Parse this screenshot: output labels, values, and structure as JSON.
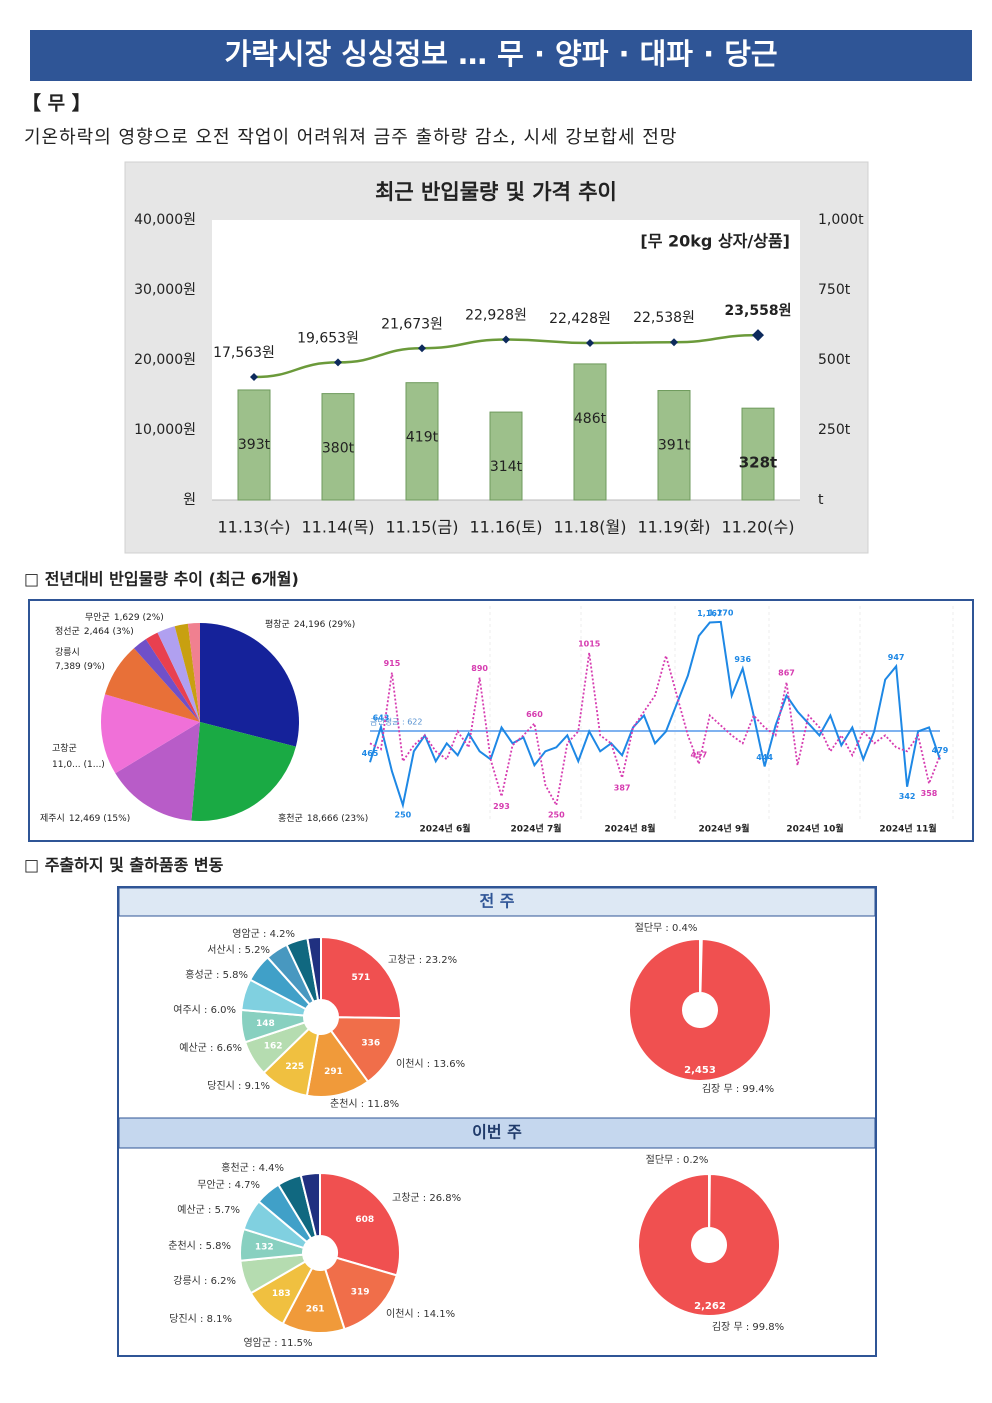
{
  "header": {
    "title": "가락시장 싱싱정보 … 무 · 양파 · 대파 · 당근"
  },
  "section": {
    "label": "【 무 】",
    "summary": "기온하락의 영향으로 오전 작업이 어려워져 금주 출하량 감소, 시세 강보합세 전망"
  },
  "sections": [
    "□  전년대비 반입물량 추이 (최근 6개월)",
    "□  주출하지 및 출하품종 변동"
  ],
  "weeks": [
    "전 주",
    "이번 주"
  ],
  "chart_data": [
    {
      "type": "bar_line",
      "title": "최근 반입물량 및 가격 추이",
      "annotation": "[무 20kg 상자/상품]",
      "categories": [
        "11.13(수)",
        "11.14(목)",
        "11.15(금)",
        "11.16(토)",
        "11.18(월)",
        "11.19(화)",
        "11.20(수)"
      ],
      "series": [
        {
          "type": "bar",
          "axis": "y2",
          "color": "#9dc08b",
          "values": [
            393,
            380,
            419,
            314,
            486,
            391,
            328
          ],
          "value_labels": [
            "393t",
            "380t",
            "419t",
            "314t",
            "486t",
            "391t",
            "328t"
          ]
        },
        {
          "type": "line",
          "color": "#6b9a3a",
          "marker_color": "#0d2a5c",
          "values": [
            17563,
            19653,
            21673,
            22928,
            22428,
            22538,
            23558
          ],
          "value_labels": [
            "17,563원",
            "19,653원",
            "21,673원",
            "22,928원",
            "22,428원",
            "22,538원",
            "23,558원"
          ]
        }
      ],
      "ylim": [
        0,
        40000
      ],
      "yticks": [
        {
          "value": 0,
          "label": "원"
        },
        {
          "value": 10000,
          "label": "10,000원"
        },
        {
          "value": 20000,
          "label": "20,000원"
        },
        {
          "value": 30000,
          "label": "30,000원"
        },
        {
          "value": 40000,
          "label": "40,000원"
        }
      ],
      "y2lim": [
        0,
        1000
      ],
      "y2ticks": [
        {
          "value": 0,
          "label": "t"
        },
        {
          "value": 250,
          "label": "250t"
        },
        {
          "value": 500,
          "label": "500t"
        },
        {
          "value": 750,
          "label": "750t"
        },
        {
          "value": 1000,
          "label": "1,000t"
        }
      ]
    },
    {
      "type": "pie",
      "categories": [
        "평창군",
        "홍천군",
        "제주시",
        "고창군",
        "강릉시",
        null,
        null,
        "정선군",
        null,
        "무안군"
      ],
      "values": [
        24196,
        18666,
        12469,
        11000,
        7389,
        2000,
        1800,
        2464,
        1800,
        1629
      ],
      "value_labels": [
        "24,196 (29%)",
        "18,666 (23%)",
        "12,469 (15%)",
        "11,0... (1...)",
        "7,389 (9%)",
        null,
        null,
        "2,464 (3%)",
        null,
        "1,629 (2%)"
      ],
      "colors": [
        "#15229a",
        "#1aaa44",
        "#b85cc8",
        "#f070d8",
        "#e87038",
        "#7050c8",
        "#e84050",
        "#b0a0f0",
        "#c8a010",
        "#f08090"
      ]
    },
    {
      "type": "line",
      "ylim": [
        200,
        1250
      ],
      "x_labels": [
        "2024년 6월",
        "2024년 7월",
        "2024년 8월",
        "2024년 9월",
        "2024년 10월",
        "2024년 11월"
      ],
      "annotation": "금년평균 : 622",
      "average": 622,
      "series": [
        {
          "color": "#1e88e5",
          "values": [
            465,
            643,
            420,
            250,
            520,
            600,
            470,
            560,
            500,
            610,
            520,
            480,
            640,
            560,
            590,
            450,
            520,
            540,
            600,
            470,
            620,
            520,
            560,
            500,
            640,
            700,
            560,
            620,
            760,
            900,
            1100,
            1167,
            1170,
            800,
            936,
            700,
            444,
            650,
            800,
            720,
            660,
            600,
            700,
            550,
            640,
            480,
            620,
            880,
            947,
            342,
            620,
            640,
            479
          ],
          "value_labels": [
            "465",
            "643",
            null,
            "250",
            null,
            null,
            null,
            null,
            null,
            null,
            null,
            null,
            null,
            null,
            null,
            null,
            null,
            null,
            null,
            null,
            null,
            null,
            null,
            null,
            null,
            null,
            null,
            null,
            null,
            null,
            null,
            "1,167",
            "1,170",
            null,
            "936",
            null,
            "444",
            null,
            null,
            null,
            null,
            null,
            null,
            null,
            null,
            null,
            null,
            null,
            "947",
            "342",
            null,
            null,
            "479"
          ]
        },
        {
          "color": "#d63cb0",
          "dashed": true,
          "values": [
            560,
            530,
            915,
            470,
            550,
            600,
            520,
            480,
            620,
            540,
            890,
            480,
            293,
            550,
            600,
            660,
            350,
            250,
            560,
            620,
            1015,
            600,
            560,
            387,
            640,
            720,
            800,
            1000,
            800,
            600,
            457,
            700,
            650,
            600,
            560,
            700,
            640,
            600,
            867,
            450,
            700,
            640,
            520,
            600,
            500,
            620,
            560,
            600,
            540,
            520,
            600,
            358,
            500
          ],
          "value_labels": [
            null,
            null,
            "915",
            null,
            null,
            null,
            null,
            null,
            null,
            null,
            "890",
            null,
            "293",
            null,
            null,
            "660",
            null,
            "250",
            null,
            null,
            "1015",
            null,
            null,
            "387",
            null,
            null,
            null,
            null,
            null,
            null,
            "457",
            null,
            null,
            null,
            null,
            null,
            null,
            null,
            "867",
            null,
            null,
            null,
            null,
            null,
            null,
            null,
            null,
            null,
            null,
            null,
            null,
            "358",
            null
          ]
        }
      ]
    },
    {
      "type": "pie",
      "categories": [
        "고창군 : 23.2%",
        "이천시 : 13.6%",
        "춘천시 : 11.8%",
        "당진시 : 9.1%",
        "예산군 : 6.6%",
        "여주시 : 6.0%",
        "홍성군 : 5.8%",
        "서산시 : 5.2%",
        "영암군 : 4.2%",
        null,
        null
      ],
      "values": [
        23.2,
        13.6,
        11.8,
        9.1,
        6.6,
        6.0,
        5.8,
        5.2,
        4.2,
        4.0,
        2.5
      ],
      "counts": [
        571,
        336,
        291,
        225,
        162,
        148,
        null,
        null,
        null,
        null,
        null
      ],
      "colors": [
        "#f05050",
        "#f06e4a",
        "#f09a3a",
        "#f0c040",
        "#b5dcb0",
        "#88d0c0",
        "#80d0e0",
        "#40a0c8",
        "#4898c0",
        "#106880",
        "#203080"
      ]
    },
    {
      "type": "donut",
      "categories": [
        "절단무 : 0.4%",
        "김장 무 : 99.4%"
      ],
      "values": [
        0.4,
        99.4
      ],
      "counts": [
        null,
        2453
      ],
      "count_labels": [
        null,
        "2,453"
      ],
      "colors": [
        "#f05050",
        "#f05050"
      ]
    },
    {
      "type": "pie",
      "categories": [
        "고창군 : 26.8%",
        "이천시 : 14.1%",
        "영암군 : 11.5%",
        "당진시 : 8.1%",
        "강릉시 : 6.2%",
        "춘천시 : 5.8%",
        "예산군 : 5.7%",
        "무안군 : 4.7%",
        "홍천군 : 4.4%",
        null
      ],
      "values": [
        26.8,
        14.1,
        11.5,
        8.1,
        6.2,
        5.8,
        5.7,
        4.7,
        4.4,
        3.5
      ],
      "counts": [
        608,
        319,
        261,
        183,
        null,
        132,
        null,
        null,
        null,
        null
      ],
      "colors": [
        "#f05050",
        "#f06e4a",
        "#f09a3a",
        "#f0c040",
        "#b5dcb0",
        "#88d0c0",
        "#80d0e0",
        "#40a0c8",
        "#106880",
        "#203080"
      ]
    },
    {
      "type": "donut",
      "categories": [
        "절단무 : 0.2%",
        "김장 무 : 99.8%"
      ],
      "values": [
        0.2,
        99.8
      ],
      "counts": [
        null,
        2262
      ],
      "count_labels": [
        null,
        "2,262"
      ],
      "colors": [
        "#f05050",
        "#f05050"
      ]
    }
  ]
}
